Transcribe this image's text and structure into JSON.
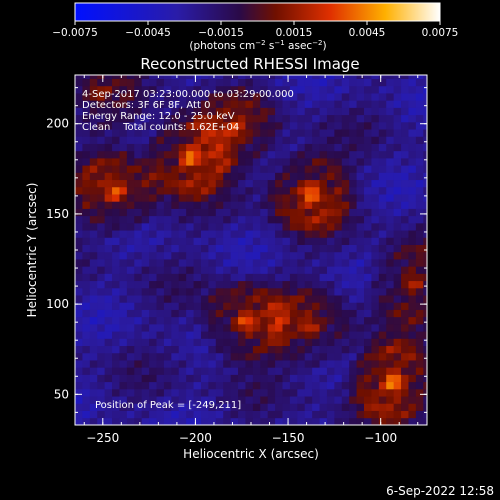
{
  "chart_data": {
    "type": "heatmap",
    "title": "Reconstructed RHESSI Image",
    "xlabel": "Heliocentric X (arcsec)",
    "ylabel": "Heliocentric Y (arcsec)",
    "xlim": [
      -265,
      -75
    ],
    "ylim": [
      33,
      227
    ],
    "x_ticks": [
      -250,
      -200,
      -150,
      -100
    ],
    "y_ticks": [
      50,
      100,
      150,
      200
    ],
    "colorbar": {
      "range": [
        -0.0075,
        0.0075
      ],
      "ticks": [
        "−0.0075",
        "−0.0045",
        "−0.0015",
        "0.0015",
        "0.0045",
        "0.0075"
      ],
      "unit_label_main": "(photons cm",
      "unit_sup1": "−2",
      "unit_mid1": " s",
      "unit_sup2": "−1",
      "unit_mid2": " asec",
      "unit_sup3": "−2",
      "unit_end": ")"
    },
    "info_lines": [
      "4-Sep-2017 03:23:00.000 to 03:29:00.000",
      "Detectors: 3F 6F 8F, Att 0",
      "Energy Range: 12.0 - 25.0 keV",
      "Clean    Total counts: 1.62E+04"
    ],
    "peak_label": "Position of Peak = [-249,211]",
    "sources": [
      {
        "x": -205,
        "y": 180,
        "amp": 0.007
      },
      {
        "x": -245,
        "y": 160,
        "amp": 0.0055
      },
      {
        "x": -180,
        "y": 195,
        "amp": 0.004
      },
      {
        "x": -140,
        "y": 160,
        "amp": 0.0065
      },
      {
        "x": -175,
        "y": 88,
        "amp": 0.006
      },
      {
        "x": -140,
        "y": 85,
        "amp": 0.004
      },
      {
        "x": -95,
        "y": 55,
        "amp": 0.007
      },
      {
        "x": -85,
        "y": 110,
        "amp": 0.0045
      },
      {
        "x": -255,
        "y": 215,
        "amp": 0.003
      }
    ]
  },
  "footer": {
    "timestamp": "6-Sep-2022 12:58"
  }
}
